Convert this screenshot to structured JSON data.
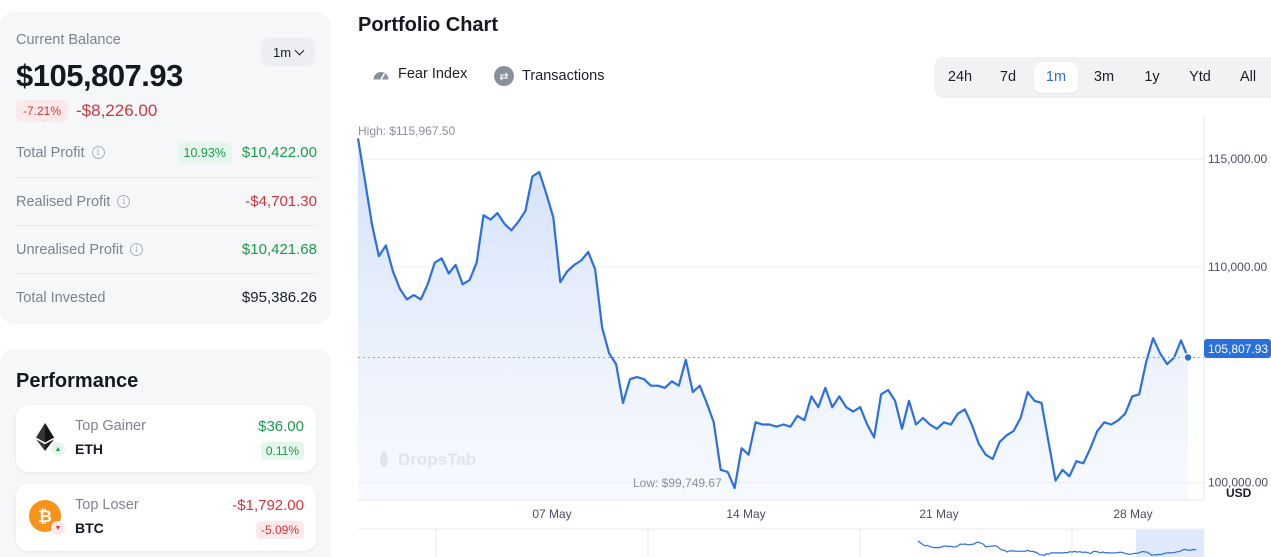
{
  "balance": {
    "label": "Current Balance",
    "period": "1m",
    "value": "$105,807.93",
    "change_pct": "-7.21%",
    "change_abs": "-$8,226.00",
    "stats": [
      {
        "label": "Total Profit",
        "pct": "10.93%",
        "value": "$10,422.00",
        "tone": "green"
      },
      {
        "label": "Realised Profit",
        "pct": "",
        "value": "-$4,701.30",
        "tone": "red"
      },
      {
        "label": "Unrealised Profit",
        "pct": "",
        "value": "$10,421.68",
        "tone": "green"
      },
      {
        "label": "Total Invested",
        "pct": "",
        "value": "$95,386.26",
        "tone": "dark"
      }
    ]
  },
  "performance": {
    "title": "Performance",
    "gainer": {
      "label": "Top Gainer",
      "symbol": "ETH",
      "value": "$36.00",
      "pct": "0.11%"
    },
    "loser": {
      "label": "Top Loser",
      "symbol": "BTC",
      "value": "-$1,792.00",
      "pct": "-5.09%"
    }
  },
  "chart": {
    "title": "Portfolio Chart",
    "tools": [
      {
        "label": "Fear Index",
        "icon": "gauge-icon"
      },
      {
        "label": "Transactions",
        "icon": "transactions-icon"
      }
    ],
    "ranges": [
      "24h",
      "7d",
      "1m",
      "3m",
      "1y",
      "Ytd",
      "All"
    ],
    "active_range": "1m",
    "high_label": "High: $115,967.50",
    "low_label": "Low: $99,749.67",
    "current_label": "105,807.93",
    "currency": "USD",
    "watermark": "DropsTab",
    "colors": {
      "line": "#2d6fe0",
      "fill": "#dce7fb",
      "current": "#2a6fdb"
    }
  },
  "chart_data": {
    "type": "area",
    "title": "",
    "xlabel": "",
    "ylabel": "",
    "x_ticks": [
      "07 May",
      "14 May",
      "21 May",
      "28 May"
    ],
    "y_ticks": [
      100000,
      110000,
      115000
    ],
    "y_tick_labels": [
      "100,000.00",
      "110,000.00",
      "115,000.00"
    ],
    "ylim": [
      99200,
      117000
    ],
    "grid": true,
    "high": 115967.5,
    "low": 99749.67,
    "current": 105807.93,
    "series": [
      {
        "values": [
          115967.5,
          114000,
          112000,
          110500,
          111000,
          109800,
          109000,
          108500,
          108700,
          108500,
          109200,
          110200,
          110400,
          109700,
          110100,
          109200,
          109400,
          110200,
          112400,
          112200,
          112500,
          112000,
          111700,
          112100,
          112600,
          114200,
          114400,
          113400,
          112300,
          109300,
          109800,
          110100,
          110300,
          110700,
          109900,
          107200,
          106000,
          105500,
          103700,
          104800,
          104900,
          104800,
          104500,
          104500,
          104400,
          104700,
          104500,
          105700,
          104200,
          104500,
          103700,
          102800,
          100600,
          100500,
          99750,
          101600,
          101300,
          102800,
          102700,
          102700,
          102600,
          102700,
          102600,
          103100,
          102900,
          104000,
          103500,
          104400,
          103500,
          104000,
          103500,
          103300,
          103500,
          102700,
          102100,
          104100,
          104300,
          103800,
          102500,
          103800,
          102700,
          103000,
          102700,
          102500,
          102800,
          102700,
          103200,
          103400,
          102700,
          101800,
          101300,
          101100,
          101900,
          102200,
          102400,
          103000,
          104200,
          103800,
          103700,
          101900,
          100100,
          100600,
          100300,
          101000,
          100900,
          101600,
          102400,
          102800,
          102700,
          102900,
          103200,
          104000,
          104100,
          105600,
          106700,
          106000,
          105500,
          105800,
          106600,
          105800
        ]
      }
    ]
  }
}
